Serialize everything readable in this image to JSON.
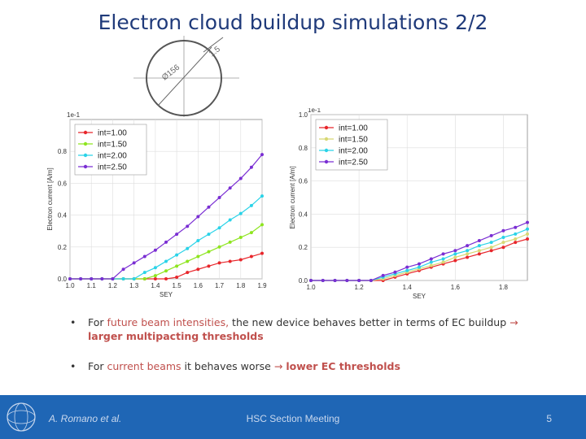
{
  "title": "Electron cloud buildup simulations 2/2",
  "diagram": {
    "label_diam": "Ø156",
    "label_thick": "1.5"
  },
  "chart_data": [
    {
      "type": "line",
      "scale_label": "1e-1",
      "xlabel": "SEY",
      "ylabel": "Electron current [A/m]",
      "xlim": [
        1.0,
        1.9
      ],
      "ylim": [
        0.0,
        1.0
      ],
      "xticks": [
        "1.0",
        "1.1",
        "1.2",
        "1.3",
        "1.4",
        "1.5",
        "1.6",
        "1.7",
        "1.8",
        "1.9"
      ],
      "yticks": [
        "0.0",
        "0.2",
        "0.4",
        "0.6",
        "0.8"
      ],
      "legend_position": "top-left",
      "series": [
        {
          "name": "int=1.00",
          "color": "#e8262b",
          "x": [
            1.0,
            1.05,
            1.1,
            1.15,
            1.2,
            1.25,
            1.3,
            1.35,
            1.4,
            1.45,
            1.5,
            1.55,
            1.6,
            1.65,
            1.7,
            1.75,
            1.8,
            1.85,
            1.9
          ],
          "y": [
            0,
            0,
            0,
            0,
            0,
            0,
            0,
            0,
            0,
            0,
            0.01,
            0.04,
            0.06,
            0.08,
            0.1,
            0.11,
            0.12,
            0.14,
            0.16
          ]
        },
        {
          "name": "int=1.50",
          "color": "#8ee51f",
          "x": [
            1.0,
            1.05,
            1.1,
            1.15,
            1.2,
            1.25,
            1.3,
            1.35,
            1.4,
            1.45,
            1.5,
            1.55,
            1.6,
            1.65,
            1.7,
            1.75,
            1.8,
            1.85,
            1.9
          ],
          "y": [
            0,
            0,
            0,
            0,
            0,
            0,
            0,
            0,
            0.02,
            0.05,
            0.08,
            0.11,
            0.14,
            0.17,
            0.2,
            0.23,
            0.26,
            0.29,
            0.34
          ]
        },
        {
          "name": "int=2.00",
          "color": "#2ad3e8",
          "x": [
            1.0,
            1.05,
            1.1,
            1.15,
            1.2,
            1.25,
            1.3,
            1.35,
            1.4,
            1.45,
            1.5,
            1.55,
            1.6,
            1.65,
            1.7,
            1.75,
            1.8,
            1.85,
            1.9
          ],
          "y": [
            0,
            0,
            0,
            0,
            0,
            0,
            0,
            0.04,
            0.07,
            0.11,
            0.15,
            0.19,
            0.24,
            0.28,
            0.32,
            0.37,
            0.41,
            0.46,
            0.52
          ]
        },
        {
          "name": "int=2.50",
          "color": "#7a2ed3",
          "x": [
            1.0,
            1.05,
            1.1,
            1.15,
            1.2,
            1.25,
            1.3,
            1.35,
            1.4,
            1.45,
            1.5,
            1.55,
            1.6,
            1.65,
            1.7,
            1.75,
            1.8,
            1.85,
            1.9
          ],
          "y": [
            0,
            0,
            0,
            0,
            0,
            0.06,
            0.1,
            0.14,
            0.18,
            0.23,
            0.28,
            0.33,
            0.39,
            0.45,
            0.51,
            0.57,
            0.63,
            0.7,
            0.78
          ]
        }
      ]
    },
    {
      "type": "line",
      "scale_label": "1e-1",
      "xlabel": "SEY",
      "ylabel": "Electron current [A/m]",
      "xlim": [
        1.0,
        1.9
      ],
      "ylim": [
        0.0,
        1.0
      ],
      "xticks": [
        "1.0",
        "1.2",
        "1.4",
        "1.6",
        "1.8"
      ],
      "yticks": [
        "0.0",
        "0.2",
        "0.4",
        "0.6",
        "0.8",
        "1.0"
      ],
      "legend_position": "top-left",
      "series": [
        {
          "name": "int=1.00",
          "color": "#e8262b",
          "x": [
            1.0,
            1.05,
            1.1,
            1.15,
            1.2,
            1.25,
            1.3,
            1.35,
            1.4,
            1.45,
            1.5,
            1.55,
            1.6,
            1.65,
            1.7,
            1.75,
            1.8,
            1.85,
            1.9
          ],
          "y": [
            0,
            0,
            0,
            0,
            0,
            0,
            0,
            0.02,
            0.04,
            0.06,
            0.08,
            0.1,
            0.12,
            0.14,
            0.16,
            0.18,
            0.2,
            0.23,
            0.25
          ]
        },
        {
          "name": "int=1.50",
          "color": "#d8d874",
          "x": [
            1.0,
            1.05,
            1.1,
            1.15,
            1.2,
            1.25,
            1.3,
            1.35,
            1.4,
            1.45,
            1.5,
            1.55,
            1.6,
            1.65,
            1.7,
            1.75,
            1.8,
            1.85,
            1.9
          ],
          "y": [
            0,
            0,
            0,
            0,
            0,
            0,
            0.01,
            0.03,
            0.05,
            0.07,
            0.09,
            0.11,
            0.14,
            0.16,
            0.18,
            0.2,
            0.23,
            0.25,
            0.28
          ]
        },
        {
          "name": "int=2.00",
          "color": "#2ad3e8",
          "x": [
            1.0,
            1.05,
            1.1,
            1.15,
            1.2,
            1.25,
            1.3,
            1.35,
            1.4,
            1.45,
            1.5,
            1.55,
            1.6,
            1.65,
            1.7,
            1.75,
            1.8,
            1.85,
            1.9
          ],
          "y": [
            0,
            0,
            0,
            0,
            0,
            0,
            0.02,
            0.04,
            0.06,
            0.08,
            0.11,
            0.13,
            0.16,
            0.18,
            0.21,
            0.23,
            0.26,
            0.28,
            0.31
          ]
        },
        {
          "name": "int=2.50",
          "color": "#7a2ed3",
          "x": [
            1.0,
            1.05,
            1.1,
            1.15,
            1.2,
            1.25,
            1.3,
            1.35,
            1.4,
            1.45,
            1.5,
            1.55,
            1.6,
            1.65,
            1.7,
            1.75,
            1.8,
            1.85,
            1.9
          ],
          "y": [
            0,
            0,
            0,
            0,
            0,
            0,
            0.03,
            0.05,
            0.08,
            0.1,
            0.13,
            0.16,
            0.18,
            0.21,
            0.24,
            0.27,
            0.3,
            0.32,
            0.35
          ]
        }
      ]
    }
  ],
  "bullets": [
    {
      "dot": "•",
      "a": "For ",
      "b": "future beam intensities,",
      "c": " the new device behaves better in terms of EC buildup ",
      "arrow": "→",
      "d": "larger multipacting thresholds"
    },
    {
      "dot": "•",
      "a": "For ",
      "b": "current beams",
      "c": " it behaves worse ",
      "arrow": "→",
      "d": "lower EC thresholds"
    }
  ],
  "footer": {
    "author": "A. Romano et al.",
    "meeting": "HSC Section Meeting",
    "page": "5"
  }
}
